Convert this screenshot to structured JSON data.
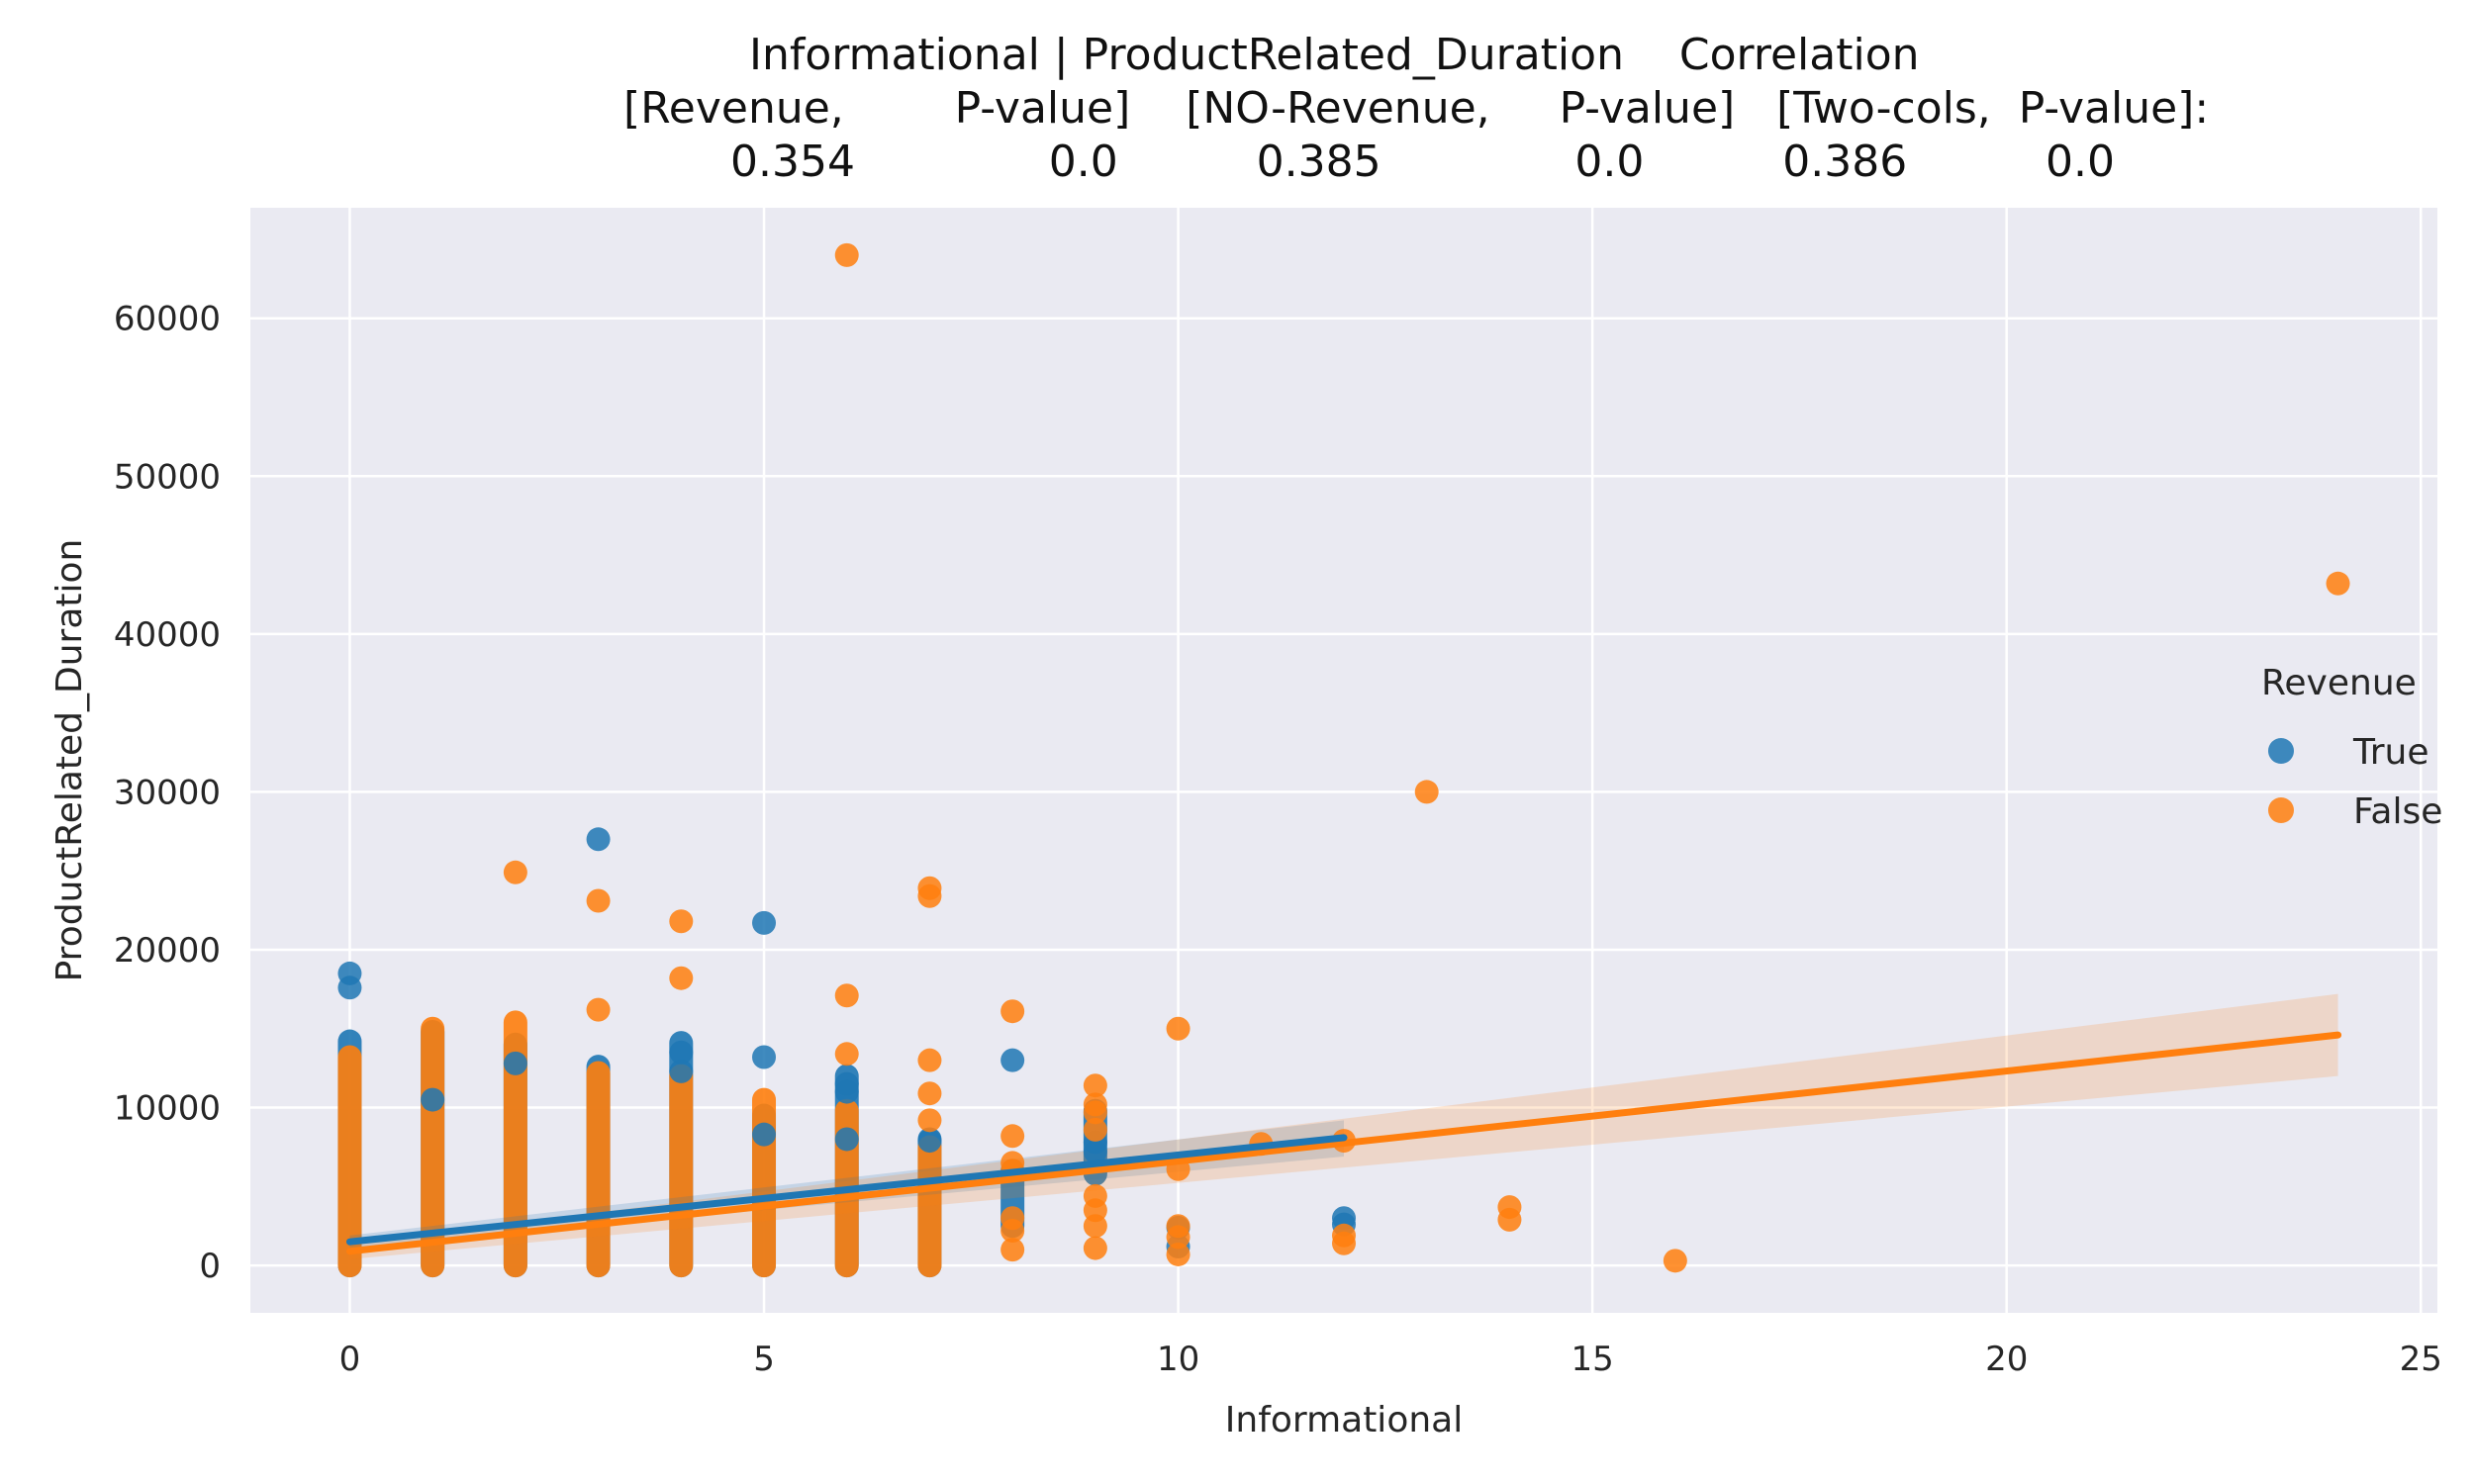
{
  "chart_data": {
    "type": "scatter",
    "title_lines": [
      "Informational | ProductRelated_Duration    Correlation",
      "[Revenue,        P-value]    [NO-Revenue,     P-value]   [Two-cols,  P-value]:",
      "0.354              0.0          0.385              0.0          0.386          0.0"
    ],
    "correlations": {
      "revenue": {
        "corr": "0.354",
        "p": "0.0"
      },
      "no_revenue": {
        "corr": "0.385",
        "p": "0.0"
      },
      "two_cols": {
        "corr": "0.386",
        "p": "0.0"
      }
    },
    "xlabel": "Informational",
    "ylabel": "ProductRelated_Duration",
    "xlim": [
      -1.2,
      25.2
    ],
    "ylim": [
      -3000,
      67000
    ],
    "xticks": [
      0,
      5,
      10,
      15,
      20,
      25
    ],
    "yticks": [
      0,
      10000,
      20000,
      30000,
      40000,
      50000,
      60000
    ],
    "grid": true,
    "background": "#eaeaf2",
    "legend": {
      "title": "Revenue",
      "position": "right"
    },
    "series": [
      {
        "name": "True",
        "color": "#1f77b4",
        "columns": [
          {
            "x": 0,
            "ymin": 0,
            "ymax": 14200
          },
          {
            "x": 1,
            "ymin": 0,
            "ymax": 14800
          },
          {
            "x": 2,
            "ymin": 0,
            "ymax": 14000
          },
          {
            "x": 3,
            "ymin": 0,
            "ymax": 12600
          },
          {
            "x": 4,
            "ymin": 0,
            "ymax": 14100
          },
          {
            "x": 5,
            "ymin": 0,
            "ymax": 9500
          },
          {
            "x": 6,
            "ymin": 0,
            "ymax": 12000
          },
          {
            "x": 7,
            "ymin": 0,
            "ymax": 8000
          },
          {
            "x": 8,
            "ymin": 2500,
            "ymax": 6000
          },
          {
            "x": 9,
            "ymin": 5800,
            "ymax": 9800
          }
        ],
        "points": [
          [
            0,
            18500
          ],
          [
            0,
            17600
          ],
          [
            3,
            27000
          ],
          [
            5,
            21700
          ],
          [
            5,
            13200
          ],
          [
            6,
            11500
          ],
          [
            6,
            11000
          ],
          [
            4,
            13500
          ],
          [
            4,
            12300
          ],
          [
            8,
            13000
          ],
          [
            9,
            7800
          ],
          [
            9,
            7200
          ],
          [
            10,
            2400
          ],
          [
            10,
            1200
          ],
          [
            12,
            3000
          ],
          [
            12,
            2600
          ],
          [
            7,
            7900
          ],
          [
            6,
            8000
          ],
          [
            5,
            8300
          ],
          [
            2,
            12800
          ],
          [
            1,
            10500
          ]
        ],
        "regression": {
          "x1": 0,
          "y1": 1500,
          "x2": 12,
          "y2": 8100,
          "ci_x1_lo": 1100,
          "ci_x1_hi": 1900,
          "ci_x2_lo": 6900,
          "ci_x2_hi": 9200
        }
      },
      {
        "name": "False",
        "color": "#ff7f0e",
        "columns": [
          {
            "x": 0,
            "ymin": 0,
            "ymax": 13200
          },
          {
            "x": 1,
            "ymin": 0,
            "ymax": 15000
          },
          {
            "x": 2,
            "ymin": 0,
            "ymax": 15400
          },
          {
            "x": 3,
            "ymin": 0,
            "ymax": 12200
          },
          {
            "x": 4,
            "ymin": 0,
            "ymax": 12000
          },
          {
            "x": 5,
            "ymin": 0,
            "ymax": 10500
          },
          {
            "x": 6,
            "ymin": 0,
            "ymax": 9800
          },
          {
            "x": 7,
            "ymin": 0,
            "ymax": 7500
          }
        ],
        "points": [
          [
            6,
            64000
          ],
          [
            24,
            43200
          ],
          [
            13,
            30000
          ],
          [
            2,
            24900
          ],
          [
            7,
            23900
          ],
          [
            7,
            23400
          ],
          [
            3,
            23100
          ],
          [
            4,
            21800
          ],
          [
            4,
            18200
          ],
          [
            6,
            17100
          ],
          [
            3,
            16200
          ],
          [
            8,
            16100
          ],
          [
            10,
            15000
          ],
          [
            6,
            13400
          ],
          [
            7,
            13000
          ],
          [
            9,
            11400
          ],
          [
            7,
            10900
          ],
          [
            9,
            10200
          ],
          [
            9,
            9700
          ],
          [
            8,
            8200
          ],
          [
            9,
            8600
          ],
          [
            7,
            9200
          ],
          [
            11,
            7700
          ],
          [
            12,
            7900
          ],
          [
            8,
            6500
          ],
          [
            8,
            6000
          ],
          [
            9,
            4400
          ],
          [
            9,
            3500
          ],
          [
            9,
            2500
          ],
          [
            9,
            1100
          ],
          [
            8,
            3000
          ],
          [
            8,
            2200
          ],
          [
            8,
            1000
          ],
          [
            10,
            6100
          ],
          [
            10,
            2500
          ],
          [
            10,
            1800
          ],
          [
            10,
            700
          ],
          [
            12,
            1900
          ],
          [
            12,
            1400
          ],
          [
            14,
            3700
          ],
          [
            14,
            2900
          ],
          [
            16,
            300
          ]
        ],
        "regression": {
          "x1": 0,
          "y1": 900,
          "x2": 24,
          "y2": 14600,
          "ci_x1_lo": 400,
          "ci_x1_hi": 1400,
          "ci_x2_lo": 12000,
          "ci_x2_hi": 17200
        }
      }
    ]
  }
}
